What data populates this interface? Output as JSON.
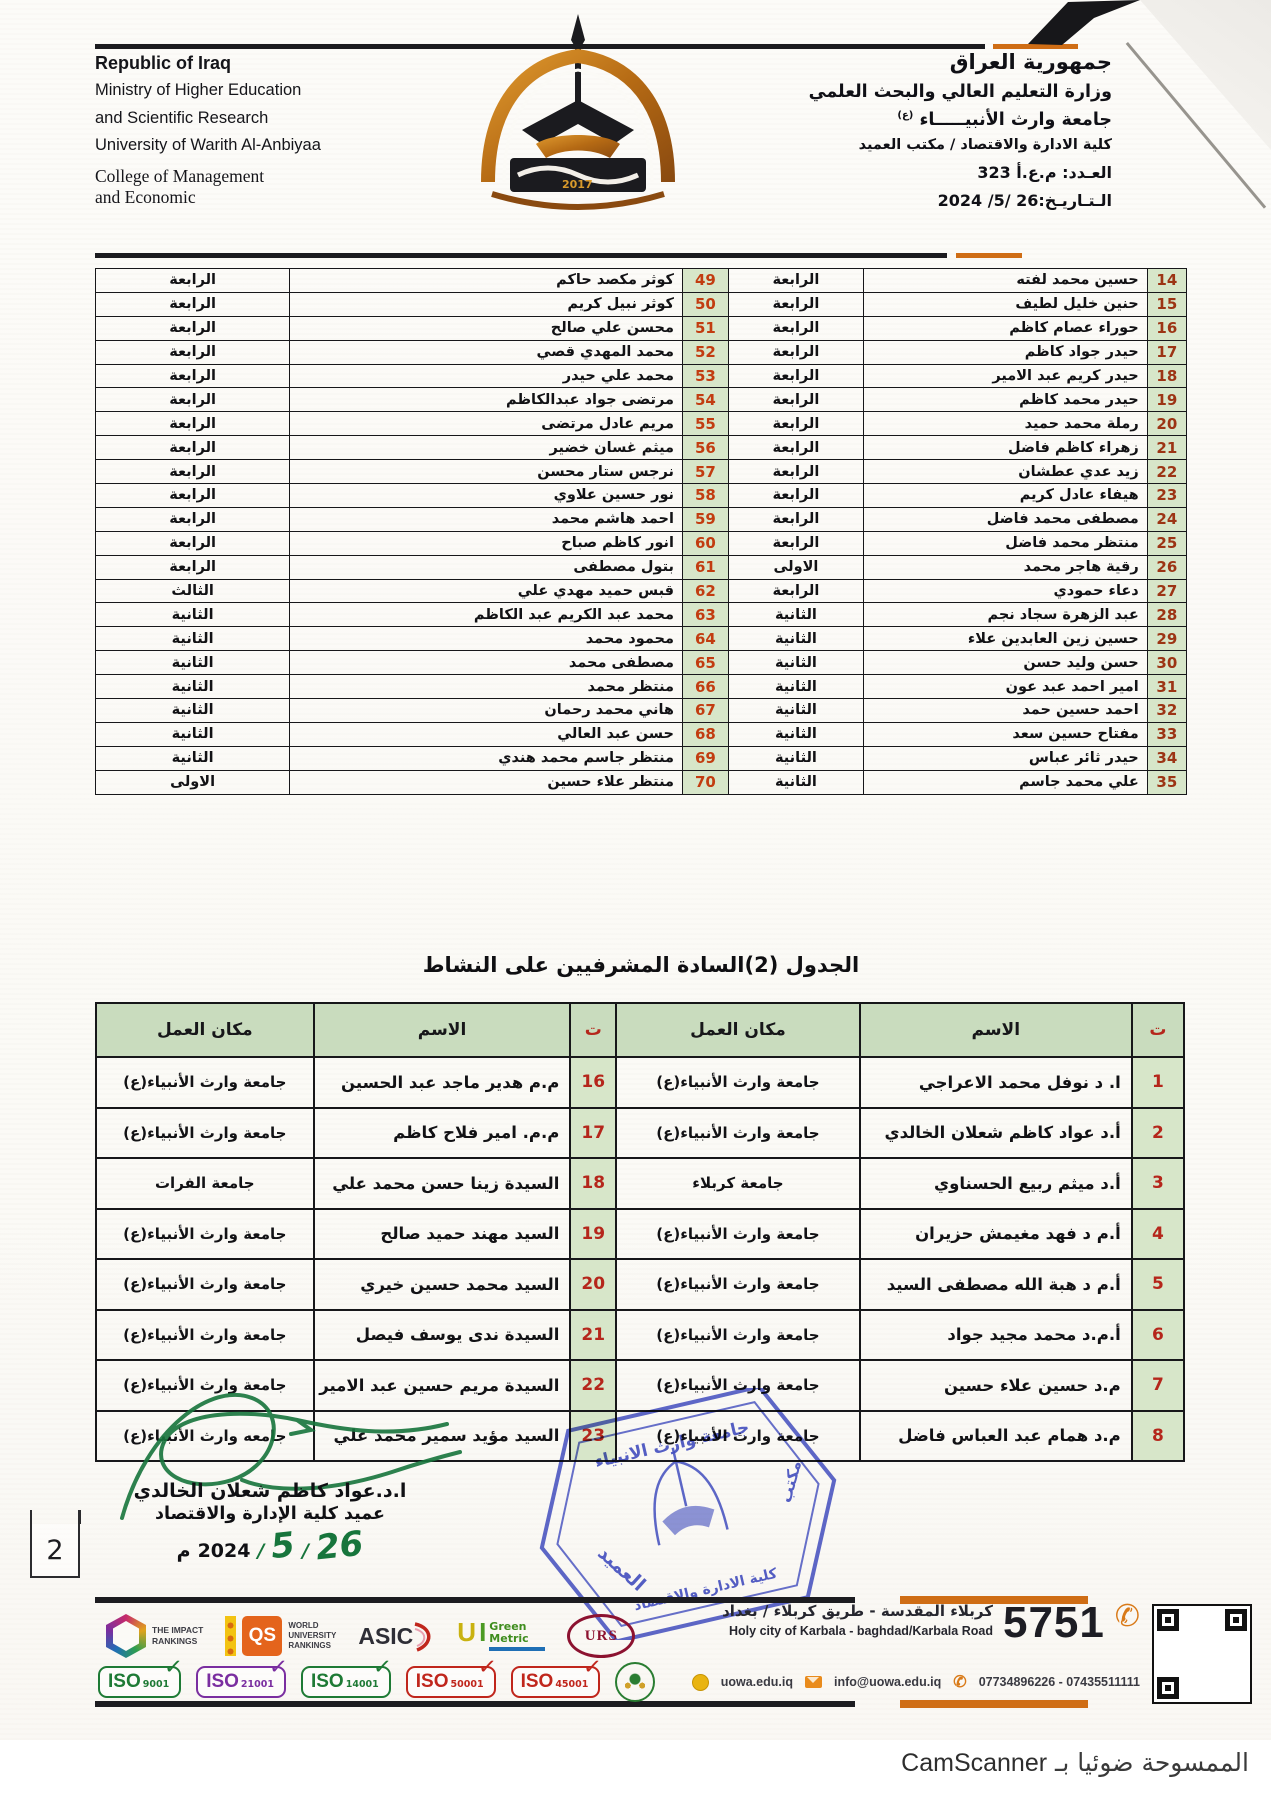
{
  "page": {
    "number": "2",
    "watermark_ar": "الممسوحة ضوئيا بـ",
    "watermark_brand": "CamScanner"
  },
  "header": {
    "en": {
      "l1": "Republic of Iraq",
      "l2": "Ministry of Higher Education",
      "l3": "and Scientific Research",
      "l4": "University of Warith Al-Anbiyaa",
      "l5": "College of Management",
      "l6": "and Economic"
    },
    "ar": {
      "l1": "جمهورية العراق",
      "l2": "وزارة التعليم العالي والبحث العلمي",
      "l3": "جامعة وارث الأنبيـــــاء",
      "l3_honorific": "(ع)",
      "l4": "كلية الادارة والاقتصاد / مكتب العميد",
      "number_line": "العـدد: م.ع.أ 323",
      "date_line": "الـتـاريـخ:26 /5/ 2024"
    },
    "logo_year": "2017"
  },
  "table1": {
    "rows": [
      {
        "n1": "14",
        "name1": "حسين محمد لفته",
        "stage1": "الرابعة",
        "n2": "49",
        "name2": "كوثر مكصد حاكم",
        "stage2": "الرابعة"
      },
      {
        "n1": "15",
        "name1": "حنين خليل لطيف",
        "stage1": "الرابعة",
        "n2": "50",
        "name2": "كوثر نبيل كريم",
        "stage2": "الرابعة"
      },
      {
        "n1": "16",
        "name1": "حوراء عصام كاظم",
        "stage1": "الرابعة",
        "n2": "51",
        "name2": "محسن علي صالح",
        "stage2": "الرابعة"
      },
      {
        "n1": "17",
        "name1": "حيدر جواد كاظم",
        "stage1": "الرابعة",
        "n2": "52",
        "name2": "محمد المهدي قصي",
        "stage2": "الرابعة"
      },
      {
        "n1": "18",
        "name1": "حيدر كريم عبد الامير",
        "stage1": "الرابعة",
        "n2": "53",
        "name2": "محمد علي حيدر",
        "stage2": "الرابعة"
      },
      {
        "n1": "19",
        "name1": "حيدر محمد كاظم",
        "stage1": "الرابعة",
        "n2": "54",
        "name2": "مرتضى جواد عبدالكاظم",
        "stage2": "الرابعة"
      },
      {
        "n1": "20",
        "name1": "رملة محمد حميد",
        "stage1": "الرابعة",
        "n2": "55",
        "name2": "مريم عادل مرتضى",
        "stage2": "الرابعة"
      },
      {
        "n1": "21",
        "name1": "زهراء كاظم فاضل",
        "stage1": "الرابعة",
        "n2": "56",
        "name2": "ميثم غسان خضير",
        "stage2": "الرابعة"
      },
      {
        "n1": "22",
        "name1": "زيد عدي عطشان",
        "stage1": "الرابعة",
        "n2": "57",
        "name2": "نرجس ستار محسن",
        "stage2": "الرابعة"
      },
      {
        "n1": "23",
        "name1": "هيفاء عادل كريم",
        "stage1": "الرابعة",
        "n2": "58",
        "name2": "نور حسين علاوي",
        "stage2": "الرابعة"
      },
      {
        "n1": "24",
        "name1": "مصطفى محمد فاضل",
        "stage1": "الرابعة",
        "n2": "59",
        "name2": "احمد هاشم محمد",
        "stage2": "الرابعة"
      },
      {
        "n1": "25",
        "name1": "منتظر محمد فاضل",
        "stage1": "الرابعة",
        "n2": "60",
        "name2": "انور كاظم صباح",
        "stage2": "الرابعة"
      },
      {
        "n1": "26",
        "name1": "رقية هاجر محمد",
        "stage1": "الاولى",
        "n2": "61",
        "name2": "بتول مصطفى",
        "stage2": "الرابعة"
      },
      {
        "n1": "27",
        "name1": "دعاء حمودي",
        "stage1": "الرابعة",
        "n2": "62",
        "name2": "قبس حميد مهدي علي",
        "stage2": "الثالث"
      },
      {
        "n1": "28",
        "name1": "عبد الزهرة سجاد نجم",
        "stage1": "الثانية",
        "n2": "63",
        "name2": "محمد عبد الكريم عبد الكاظم",
        "stage2": "الثانية"
      },
      {
        "n1": "29",
        "name1": "حسين زين العابدين علاء",
        "stage1": "الثانية",
        "n2": "64",
        "name2": "محمود محمد",
        "stage2": "الثانية"
      },
      {
        "n1": "30",
        "name1": "حسن وليد حسن",
        "stage1": "الثانية",
        "n2": "65",
        "name2": "مصطفى محمد",
        "stage2": "الثانية"
      },
      {
        "n1": "31",
        "name1": "امير احمد عبد عون",
        "stage1": "الثانية",
        "n2": "66",
        "name2": "منتظر محمد",
        "stage2": "الثانية"
      },
      {
        "n1": "32",
        "name1": "احمد حسين حمد",
        "stage1": "الثانية",
        "n2": "67",
        "name2": "هاني محمد رحمان",
        "stage2": "الثانية"
      },
      {
        "n1": "33",
        "name1": "مفتاح حسين سعد",
        "stage1": "الثانية",
        "n2": "68",
        "name2": "حسن عبد العالي",
        "stage2": "الثانية"
      },
      {
        "n1": "34",
        "name1": "حيدر ثائر عباس",
        "stage1": "الثانية",
        "n2": "69",
        "name2": "منتظر جاسم محمد هندي",
        "stage2": "الثانية"
      },
      {
        "n1": "35",
        "name1": "علي محمد جاسم",
        "stage1": "الثانية",
        "n2": "70",
        "name2": "منتظر علاء حسين",
        "stage2": "الاولى"
      }
    ]
  },
  "table2_title": "الجدول (2)السادة المشرفيين على النشاط",
  "table2": {
    "headers": [
      "ت",
      "الاسم",
      "مكان العمل",
      "ت",
      "الاسم",
      "مكان العمل"
    ],
    "rows": [
      {
        "n1": "1",
        "name1": "ا. د نوفل محمد الاعراجي",
        "place1": "جامعة وارث الأنبياء(ع)",
        "n2": "16",
        "name2": "م.م هدير ماجد عبد الحسين",
        "place2": "جامعة وارث الأنبياء(ع)"
      },
      {
        "n1": "2",
        "name1": "أ.د عواد كاظم شعلان الخالدي",
        "place1": "جامعة وارث الأنبياء(ع)",
        "n2": "17",
        "name2": "م.م. امير فلاح كاظم",
        "place2": "جامعة وارث الأنبياء(ع)"
      },
      {
        "n1": "3",
        "name1": "أ.د ميثم ربيع الحسناوي",
        "place1": "جامعة كربلاء",
        "n2": "18",
        "name2": "السيدة زينا حسن محمد علي",
        "place2": "جامعة الفرات"
      },
      {
        "n1": "4",
        "name1": "أ.م د فهد مغيمش حزيران",
        "place1": "جامعة وارث الأنبياء(ع)",
        "n2": "19",
        "name2": "السيد مهند حميد صالح",
        "place2": "جامعة وارث الأنبياء(ع)"
      },
      {
        "n1": "5",
        "name1": "أ.م د هبة الله مصطفى السيد",
        "place1": "جامعة وارث الأنبياء(ع)",
        "n2": "20",
        "name2": "السيد محمد حسين خيري",
        "place2": "جامعة وارث الأنبياء(ع)"
      },
      {
        "n1": "6",
        "name1": "أ.م.د محمد مجيد جواد",
        "place1": "جامعة وارث الأنبياء(ع)",
        "n2": "21",
        "name2": "السيدة ندى يوسف فيصل",
        "place2": "جامعة وارث الأنبياء(ع)"
      },
      {
        "n1": "7",
        "name1": "م.د حسين علاء حسين",
        "place1": "جامعة وارث الأنبياء(ع)",
        "n2": "22",
        "name2": "السيدة مريم حسين عبد الامير",
        "place2": "جامعة وارث الأنبياء(ع)"
      },
      {
        "n1": "8",
        "name1": "م.د همام عبد العباس فاضل",
        "place1": "جامعة وارث الأنبياء(ع)",
        "n2": "23",
        "name2": "السيد مؤيد سمير محمد علي",
        "place2": "جامعه وارث الأنبياء(ع)"
      }
    ]
  },
  "signature": {
    "name": "ا.د.عواد كاظم شعلان الخالدي",
    "title": "عميد كلية الإدارة والاقتصاد",
    "printed_suffix": "م",
    "printed_year": "2024",
    "slash": "/",
    "hand_month": "5",
    "hand_day": "26"
  },
  "stamp": {
    "top": "جامعة وارث الانبياء",
    "right": "مكتب",
    "center": "العميد",
    "bottom": "كلية الادارة والاقتصاد"
  },
  "footer": {
    "impact": {
      "l1": "THE IMPACT",
      "l2": "RANKINGS"
    },
    "qs": {
      "abbr": "QS",
      "l1": "WORLD",
      "l2": "UNIVERSITY",
      "l3": "RANKINGS"
    },
    "asic": "ASIC",
    "ui": {
      "u": "U",
      "i": "I",
      "g": "Green",
      "m": "Metric"
    },
    "urs": "URS",
    "iso_word": "ISO",
    "iso_check": "✓",
    "iso": [
      {
        "num": "9001",
        "color": "#1e7a35"
      },
      {
        "num": "21001",
        "color": "#7a2ea0"
      },
      {
        "num": "14001",
        "color": "#1e7a35"
      },
      {
        "num": "50001",
        "color": "#c0261c"
      },
      {
        "num": "45001",
        "color": "#c0261c"
      }
    ],
    "address_ar": "كربلاء المقدسة - طريق كربلاء / بغداد",
    "address_en": "Holy city of Karbala - baghdad/Karbala Road",
    "pobox": "5751",
    "phone_glyph": "✆",
    "website": "uowa.edu.iq",
    "email": "info@uowa.edu.iq",
    "phones": "07734896226 - 07435511111"
  },
  "colors": {
    "table_green": "#d7e6c9",
    "header_green": "#c9dcbe",
    "num_red_right": "#9c3414",
    "num_red_left": "#c23c10",
    "stamp_blue": "#3240c2",
    "signature_green": "#17753c",
    "rule_orange": "#cf6d15"
  }
}
